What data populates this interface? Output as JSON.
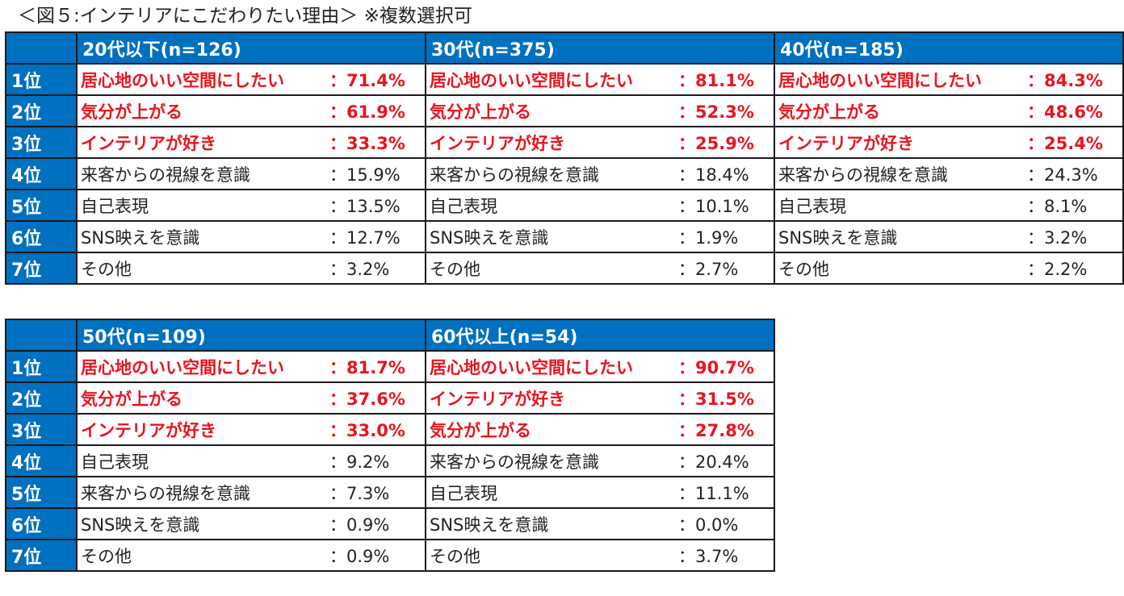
{
  "title": "＜図５:インテリアにこだわりたい理由＞ ※複数選択可",
  "ranks": [
    "1位",
    "2位",
    "3位",
    "4位",
    "5位",
    "6位",
    "7位"
  ],
  "highlight_color": "#e8141e",
  "header_color": "#0070c0",
  "table1": {
    "groups": [
      {
        "header": "20代以下(n=126)",
        "rows": [
          {
            "label": "居心地のいい空間にしたい",
            "value": "：71.4%",
            "highlight": true
          },
          {
            "label": "気分が上がる",
            "value": "：61.9%",
            "highlight": true
          },
          {
            "label": "インテリアが好き",
            "value": "：33.3%",
            "highlight": true
          },
          {
            "label": "来客からの視線を意識",
            "value": "：15.9%",
            "highlight": false
          },
          {
            "label": "自己表現",
            "value": "：13.5%",
            "highlight": false
          },
          {
            "label": "SNS映えを意識",
            "value": "：12.7%",
            "highlight": false
          },
          {
            "label": "その他",
            "value": "：3.2%",
            "highlight": false
          }
        ]
      },
      {
        "header": "30代(n=375)",
        "rows": [
          {
            "label": "居心地のいい空間にしたい",
            "value": "：81.1%",
            "highlight": true
          },
          {
            "label": "気分が上がる",
            "value": "：52.3%",
            "highlight": true
          },
          {
            "label": "インテリアが好き",
            "value": "：25.9%",
            "highlight": true
          },
          {
            "label": "来客からの視線を意識",
            "value": "：18.4%",
            "highlight": false
          },
          {
            "label": "自己表現",
            "value": "：10.1%",
            "highlight": false
          },
          {
            "label": "SNS映えを意識",
            "value": "：1.9%",
            "highlight": false
          },
          {
            "label": "その他",
            "value": "：2.7%",
            "highlight": false
          }
        ]
      },
      {
        "header": "40代(n=185)",
        "rows": [
          {
            "label": "居心地のいい空間にしたい",
            "value": "：84.3%",
            "highlight": true
          },
          {
            "label": "気分が上がる",
            "value": "：48.6%",
            "highlight": true
          },
          {
            "label": "インテリアが好き",
            "value": "：25.4%",
            "highlight": true
          },
          {
            "label": "来客からの視線を意識",
            "value": "：24.3%",
            "highlight": false
          },
          {
            "label": "自己表現",
            "value": "：8.1%",
            "highlight": false
          },
          {
            "label": "SNS映えを意識",
            "value": "：3.2%",
            "highlight": false
          },
          {
            "label": "その他",
            "value": "：2.2%",
            "highlight": false
          }
        ]
      }
    ]
  },
  "table2": {
    "groups": [
      {
        "header": "50代(n=109)",
        "rows": [
          {
            "label": "居心地のいい空間にしたい",
            "value": "：81.7%",
            "highlight": true
          },
          {
            "label": "気分が上がる",
            "value": "：37.6%",
            "highlight": true
          },
          {
            "label": "インテリアが好き",
            "value": "：33.0%",
            "highlight": true
          },
          {
            "label": "自己表現",
            "value": "：9.2%",
            "highlight": false
          },
          {
            "label": "来客からの視線を意識",
            "value": "：7.3%",
            "highlight": false
          },
          {
            "label": "SNS映えを意識",
            "value": "：0.9%",
            "highlight": false
          },
          {
            "label": "その他",
            "value": "：0.9%",
            "highlight": false
          }
        ]
      },
      {
        "header": "60代以上(n=54)",
        "rows": [
          {
            "label": "居心地のいい空間にしたい",
            "value": "：90.7%",
            "highlight": true
          },
          {
            "label": "インテリアが好き",
            "value": "：31.5%",
            "highlight": true
          },
          {
            "label": "気分が上がる",
            "value": "：27.8%",
            "highlight": true
          },
          {
            "label": "来客からの視線を意識",
            "value": "：20.4%",
            "highlight": false
          },
          {
            "label": "自己表現",
            "value": "：11.1%",
            "highlight": false
          },
          {
            "label": "SNS映えを意識",
            "value": "：0.0%",
            "highlight": false
          },
          {
            "label": "その他",
            "value": "：3.7%",
            "highlight": false
          }
        ]
      }
    ]
  }
}
